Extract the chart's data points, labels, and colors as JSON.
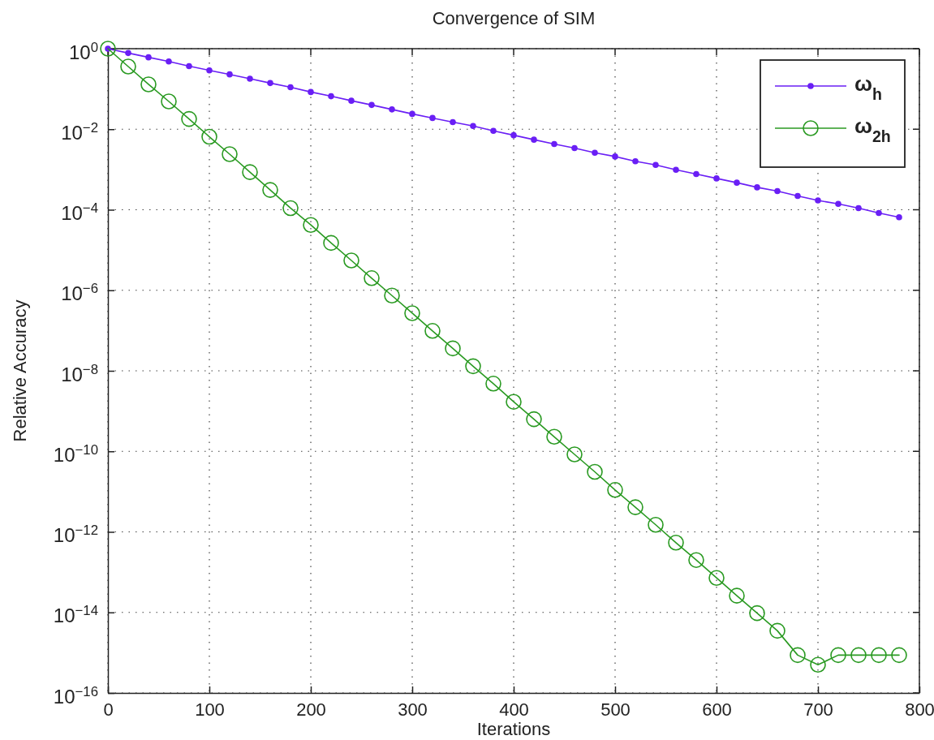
{
  "chart_data": {
    "type": "line",
    "title": "Convergence of SIM",
    "xlabel": "Iterations",
    "ylabel": "Relative Accuracy",
    "x": [
      0,
      20,
      40,
      60,
      80,
      100,
      120,
      140,
      160,
      180,
      200,
      220,
      240,
      260,
      280,
      300,
      320,
      340,
      360,
      380,
      400,
      420,
      440,
      460,
      480,
      500,
      520,
      540,
      560,
      580,
      600,
      620,
      640,
      660,
      680,
      700,
      720,
      740,
      760,
      780
    ],
    "series": [
      {
        "name": "ω$_{h}$",
        "color": "#6a1ff5",
        "marker": "circle",
        "values": [
          1,
          0.78,
          0.61,
          0.48,
          0.37,
          0.29,
          0.23,
          0.18,
          0.14,
          0.11,
          0.084,
          0.066,
          0.051,
          0.04,
          0.031,
          0.024,
          0.019,
          0.015,
          0.012,
          0.0091,
          0.0071,
          0.0055,
          0.0043,
          0.0034,
          0.0026,
          0.0021,
          0.0016,
          0.0013,
          0.00098,
          0.00077,
          0.0006,
          0.00047,
          0.00036,
          0.00029,
          0.00022,
          0.00017,
          0.00014,
          0.00011,
          8.3e-05,
          6.5e-05
        ]
      },
      {
        "name": "ω$_{2h}$",
        "color": "#2a9a22",
        "marker": "circle",
        "values": [
          1,
          0.36,
          0.13,
          0.049,
          0.018,
          0.0065,
          0.0024,
          0.00086,
          0.00031,
          0.00011,
          4.2e-05,
          1.5e-05,
          5.5e-06,
          2e-06,
          7.4e-07,
          2.7e-07,
          9.8e-08,
          3.6e-08,
          1.3e-08,
          4.8e-09,
          1.7e-09,
          6.3e-10,
          2.3e-10,
          8.4e-11,
          3.1e-11,
          1.1e-11,
          4.1e-12,
          1.5e-12,
          5.4e-13,
          2e-13,
          7.2e-14,
          2.6e-14,
          9.6e-15,
          3.5e-15,
          8.7e-16,
          5e-16,
          8.7e-16,
          8.7e-16,
          8.7e-16,
          8.7e-16
        ]
      }
    ],
    "xlim": [
      0,
      800
    ],
    "xticks": [
      0,
      100,
      200,
      300,
      400,
      500,
      600,
      700,
      800
    ],
    "ylim": [
      1e-16,
      1
    ],
    "log": true,
    "yticks": [
      {
        "value": 1,
        "label": "10$^{0}$"
      },
      {
        "value": 0.01,
        "label": "10$^{−2}$"
      },
      {
        "value": 0.0001,
        "label": "10$^{−4}$"
      },
      {
        "value": 1e-06,
        "label": "10$^{−6}$"
      },
      {
        "value": 1e-08,
        "label": "10$^{−8}$"
      },
      {
        "value": 1e-10,
        "label": "10$^{−10}$"
      },
      {
        "value": 1e-12,
        "label": "10$^{−12}$"
      },
      {
        "value": 1e-14,
        "label": "10$^{−14}$"
      },
      {
        "value": 1e-16,
        "label": "10$^{−16}$"
      }
    ],
    "grid": true,
    "legend": "top right",
    "line_style": "solid"
  }
}
